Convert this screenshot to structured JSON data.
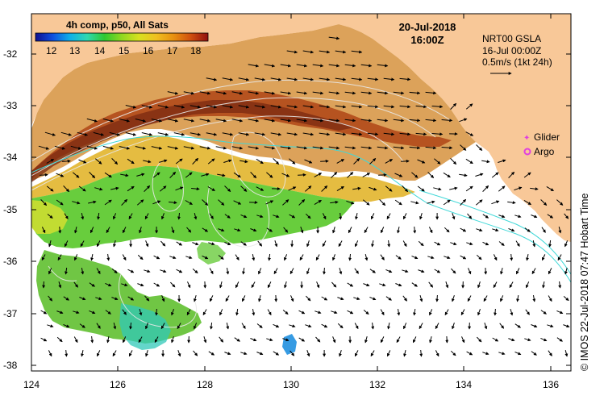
{
  "colors": {
    "land": "#f8c898",
    "frame": "#000000",
    "contour_ssh": "#e8e8e8",
    "contour_shelf": "#40d8d8",
    "glider": "#e040e0",
    "argo": "#e040e0",
    "colormap": [
      "#101090",
      "#1050e0",
      "#10b0e8",
      "#30d8b0",
      "#30c830",
      "#90d820",
      "#d8e020",
      "#f0c020",
      "#e89010",
      "#d05010",
      "#901010"
    ]
  },
  "colorbar": {
    "title": "4h comp, p50, All Sats",
    "ticks": [
      "12",
      "13",
      "14",
      "15",
      "16",
      "17",
      "18"
    ]
  },
  "header": {
    "date": "20-Jul-2018",
    "time": "16:00Z"
  },
  "info": {
    "line1": "NRT00 GSLA",
    "line2": "16-Jul 00:00Z",
    "line3": "0.5m/s (1kt 24h)"
  },
  "legend": {
    "glider": "Glider",
    "argo": "Argo"
  },
  "side_label": "© IMOS 22-Jul-2018 07:47 Hobart Time",
  "axes": {
    "x_ticks": [
      "124",
      "126",
      "128",
      "130",
      "132",
      "134",
      "136"
    ],
    "y_ticks": [
      "-32",
      "-33",
      "-34",
      "-35",
      "-36",
      "-37",
      "-38"
    ]
  }
}
